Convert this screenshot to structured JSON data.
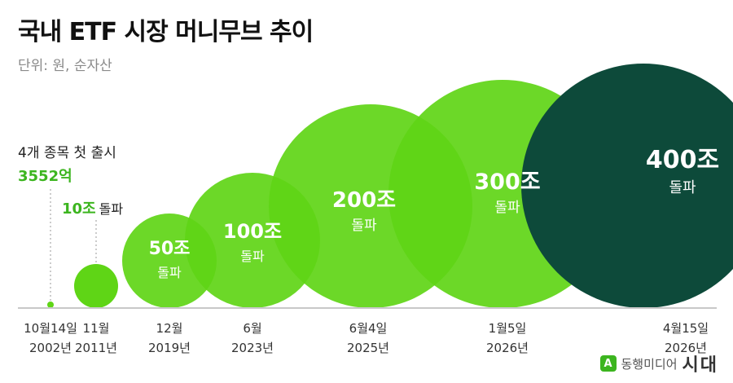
{
  "header": {
    "title": "국내 ETF 시장 머니무브 추이",
    "unit": "단위: 원, 순자산"
  },
  "chart_data": {
    "type": "bubble",
    "title": "국내 ETF 시장 머니무브 추이",
    "unit": "단위: 원, 순자산",
    "milestones": [
      {
        "date": "10월14일",
        "year": "2002년",
        "value": "3552억",
        "value_krw_eok": 3552,
        "label": "4개 종목 첫 출시",
        "suffix": ""
      },
      {
        "date": "11월",
        "year": "2011년",
        "value": "10조",
        "value_krw_eok": 100000,
        "label": "",
        "suffix": "돌파"
      },
      {
        "date": "12월",
        "year": "2019년",
        "value": "50조",
        "value_krw_eok": 500000,
        "label": "",
        "suffix": "돌파"
      },
      {
        "date": "6월",
        "year": "2023년",
        "value": "100조",
        "value_krw_eok": 1000000,
        "label": "",
        "suffix": "돌파"
      },
      {
        "date": "6월4일",
        "year": "2025년",
        "value": "200조",
        "value_krw_eok": 2000000,
        "label": "",
        "suffix": "돌파"
      },
      {
        "date": "1월5일",
        "year": "2026년",
        "value": "300조",
        "value_krw_eok": 3000000,
        "label": "",
        "suffix": "돌파"
      },
      {
        "date": "4월15일",
        "year": "2026년",
        "value": "400조",
        "value_krw_eok": 4000000,
        "label": "",
        "suffix": "돌파"
      }
    ],
    "colors": {
      "bubble": "#5fd516",
      "bubble_last": "#0d4a3a",
      "accent_text": "#3cb51f",
      "baseline": "#c8c8c8"
    }
  },
  "brand": {
    "icon": "A",
    "publisher": "동행미디어",
    "name": "시대"
  }
}
